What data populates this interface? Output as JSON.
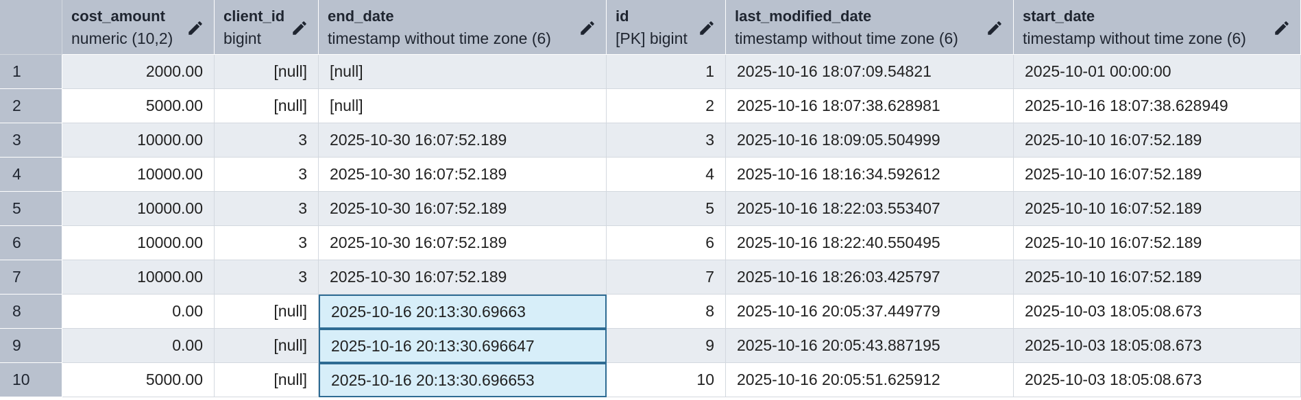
{
  "columns": [
    {
      "name": "cost_amount",
      "type": "numeric (10,2)"
    },
    {
      "name": "client_id",
      "type": "bigint"
    },
    {
      "name": "end_date",
      "type": "timestamp without time zone (6)"
    },
    {
      "name": "id",
      "type": "[PK] bigint"
    },
    {
      "name": "last_modified_date",
      "type": "timestamp without time zone (6)"
    },
    {
      "name": "start_date",
      "type": "timestamp without time zone (6)"
    }
  ],
  "icons": {
    "edit_column": "pencil-icon"
  },
  "rows": [
    {
      "n": "1",
      "cost_amount": "2000.00",
      "client_id": "[null]",
      "end_date": "[null]",
      "id": "1",
      "last_modified_date": "2025-10-16 18:07:09.54821",
      "start_date": "2025-10-01 00:00:00"
    },
    {
      "n": "2",
      "cost_amount": "5000.00",
      "client_id": "[null]",
      "end_date": "[null]",
      "id": "2",
      "last_modified_date": "2025-10-16 18:07:38.628981",
      "start_date": "2025-10-16 18:07:38.628949"
    },
    {
      "n": "3",
      "cost_amount": "10000.00",
      "client_id": "3",
      "end_date": "2025-10-30 16:07:52.189",
      "id": "3",
      "last_modified_date": "2025-10-16 18:09:05.504999",
      "start_date": "2025-10-10 16:07:52.189"
    },
    {
      "n": "4",
      "cost_amount": "10000.00",
      "client_id": "3",
      "end_date": "2025-10-30 16:07:52.189",
      "id": "4",
      "last_modified_date": "2025-10-16 18:16:34.592612",
      "start_date": "2025-10-10 16:07:52.189"
    },
    {
      "n": "5",
      "cost_amount": "10000.00",
      "client_id": "3",
      "end_date": "2025-10-30 16:07:52.189",
      "id": "5",
      "last_modified_date": "2025-10-16 18:22:03.553407",
      "start_date": "2025-10-10 16:07:52.189"
    },
    {
      "n": "6",
      "cost_amount": "10000.00",
      "client_id": "3",
      "end_date": "2025-10-30 16:07:52.189",
      "id": "6",
      "last_modified_date": "2025-10-16 18:22:40.550495",
      "start_date": "2025-10-10 16:07:52.189"
    },
    {
      "n": "7",
      "cost_amount": "10000.00",
      "client_id": "3",
      "end_date": "2025-10-30 16:07:52.189",
      "id": "7",
      "last_modified_date": "2025-10-16 18:26:03.425797",
      "start_date": "2025-10-10 16:07:52.189"
    },
    {
      "n": "8",
      "cost_amount": "0.00",
      "client_id": "[null]",
      "end_date": "2025-10-16 20:13:30.69663",
      "id": "8",
      "last_modified_date": "2025-10-16 20:05:37.449779",
      "start_date": "2025-10-03 18:05:08.673"
    },
    {
      "n": "9",
      "cost_amount": "0.00",
      "client_id": "[null]",
      "end_date": "2025-10-16 20:13:30.696647",
      "id": "9",
      "last_modified_date": "2025-10-16 20:05:43.887195",
      "start_date": "2025-10-03 18:05:08.673"
    },
    {
      "n": "10",
      "cost_amount": "5000.00",
      "client_id": "[null]",
      "end_date": "2025-10-16 20:13:30.696653",
      "id": "10",
      "last_modified_date": "2025-10-16 20:05:51.625912",
      "start_date": "2025-10-03 18:05:08.673"
    }
  ],
  "selected_cells": {
    "column": "end_date",
    "rows": [
      "8",
      "9",
      "10"
    ]
  }
}
